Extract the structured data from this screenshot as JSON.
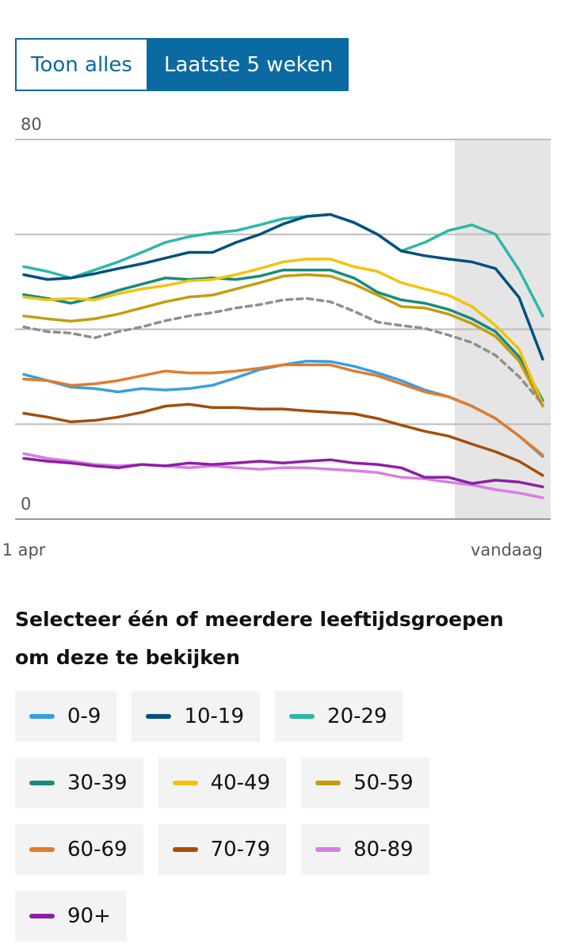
{
  "toggle": {
    "options": [
      "Toon alles",
      "Laatste 5 weken"
    ]
  },
  "chart_data": {
    "type": "line",
    "categories": [
      "1 apr",
      null,
      null,
      null,
      null,
      null,
      null,
      null,
      null,
      null,
      null,
      null,
      null,
      null,
      null,
      null,
      null,
      null,
      null,
      null,
      null,
      null,
      "vandaag"
    ],
    "ylim": [
      0,
      80
    ],
    "yticks": [
      0,
      {
        "value": 20,
        "label": null
      },
      {
        "value": 40,
        "label": null
      },
      {
        "value": 60,
        "label": null
      },
      80
    ],
    "grid": true,
    "series": [
      {
        "name": "20-29",
        "color": "#2bb8a9",
        "values": [
          53.2,
          52.2,
          50.8,
          52.5,
          54.2,
          56.2,
          58.3,
          59.5,
          60.3,
          60.8,
          62,
          63.3,
          63.8,
          64.2,
          62.5,
          60,
          56.5,
          58.3,
          60.8,
          62,
          60,
          52.5,
          42.8
        ]
      },
      {
        "name": "10-19",
        "color": "#02507f",
        "values": [
          51.5,
          50.5,
          50.8,
          51.7,
          52.8,
          53.8,
          55,
          56.2,
          56.2,
          58.3,
          60,
          62.2,
          63.8,
          64.2,
          62.5,
          60,
          56.5,
          55.5,
          54.8,
          54.2,
          52.8,
          46.7,
          33.7
        ]
      },
      {
        "name": "30-39",
        "color": "#168c7e",
        "values": [
          47.3,
          46.5,
          45.5,
          46.7,
          48.2,
          49.5,
          50.8,
          50.5,
          50.8,
          50.5,
          51.2,
          52.5,
          52.5,
          52.5,
          50.8,
          47.8,
          46.2,
          45.5,
          44.2,
          42.2,
          39.5,
          34.2,
          25
        ]
      },
      {
        "name": "40-49",
        "color": "#f3c20f",
        "values": [
          46.8,
          46.2,
          46.5,
          46.2,
          47.5,
          48.5,
          49.2,
          50.2,
          50.5,
          51.5,
          52.8,
          54.2,
          54.8,
          54.8,
          53.2,
          52.2,
          49.8,
          48.5,
          47.2,
          44.8,
          40.8,
          35.8,
          24.2
        ]
      },
      {
        "name": "50-59",
        "color": "#c69c0e",
        "values": [
          42.8,
          42.2,
          41.7,
          42.2,
          43.2,
          44.5,
          45.8,
          46.8,
          47.2,
          48.5,
          49.8,
          51.2,
          51.5,
          51.2,
          49.5,
          47.2,
          44.8,
          44.5,
          43.2,
          41.2,
          38.5,
          33.3,
          23.8
        ]
      },
      {
        "color": "#8f8f8f",
        "dashed": true,
        "values": [
          40.5,
          39.5,
          39.2,
          38.2,
          39.5,
          40.5,
          41.8,
          42.8,
          43.5,
          44.5,
          45.2,
          46.2,
          46.5,
          45.8,
          43.8,
          41.5,
          40.8,
          40.2,
          38.8,
          37.2,
          34.5,
          30,
          24.2
        ]
      },
      {
        "name": "0-9",
        "color": "#3a9ee0",
        "values": [
          30.5,
          29.2,
          27.8,
          27.5,
          26.8,
          27.5,
          27.2,
          27.5,
          28.2,
          29.8,
          31.5,
          32.5,
          33.3,
          33.2,
          32.2,
          30.8,
          29.2,
          27.2,
          25.8,
          23.8,
          21.2,
          17.5,
          13.2
        ]
      },
      {
        "name": "60-69",
        "color": "#e27b2b",
        "values": [
          29.5,
          29.2,
          28.2,
          28.5,
          29.2,
          30.2,
          31.2,
          30.8,
          30.8,
          31.2,
          31.8,
          32.5,
          32.5,
          32.5,
          31.2,
          30.2,
          28.5,
          26.8,
          25.8,
          23.8,
          21.2,
          17.5,
          13.5
        ]
      },
      {
        "name": "70-79",
        "color": "#a24e0d",
        "values": [
          22.3,
          21.5,
          20.5,
          20.8,
          21.5,
          22.5,
          23.8,
          24.2,
          23.5,
          23.5,
          23.2,
          23.2,
          22.8,
          22.5,
          22.2,
          21.2,
          19.8,
          18.5,
          17.5,
          15.8,
          14.2,
          12.2,
          9.2
        ]
      },
      {
        "name": "80-89",
        "color": "#d67fe2",
        "values": [
          13.8,
          12.8,
          12.2,
          11.5,
          11.2,
          11.5,
          11.2,
          10.8,
          11.2,
          10.8,
          10.5,
          10.8,
          10.8,
          10.5,
          10.2,
          9.8,
          8.8,
          8.5,
          7.8,
          7.2,
          6.2,
          5.5,
          4.5
        ]
      },
      {
        "name": "90+",
        "color": "#8d20a2",
        "values": [
          12.8,
          12.2,
          11.8,
          11.2,
          10.8,
          11.5,
          11.2,
          11.8,
          11.5,
          11.8,
          12.2,
          11.8,
          12.2,
          12.5,
          11.8,
          11.5,
          10.8,
          8.8,
          8.8,
          7.5,
          8.2,
          7.8,
          6.8
        ]
      }
    ]
  },
  "legend_heading": "Selecteer één of meerdere leeftijdsgroepen om deze te bekijken",
  "legend_order": [
    6,
    1,
    0,
    2,
    3,
    4,
    7,
    8,
    9,
    10
  ]
}
